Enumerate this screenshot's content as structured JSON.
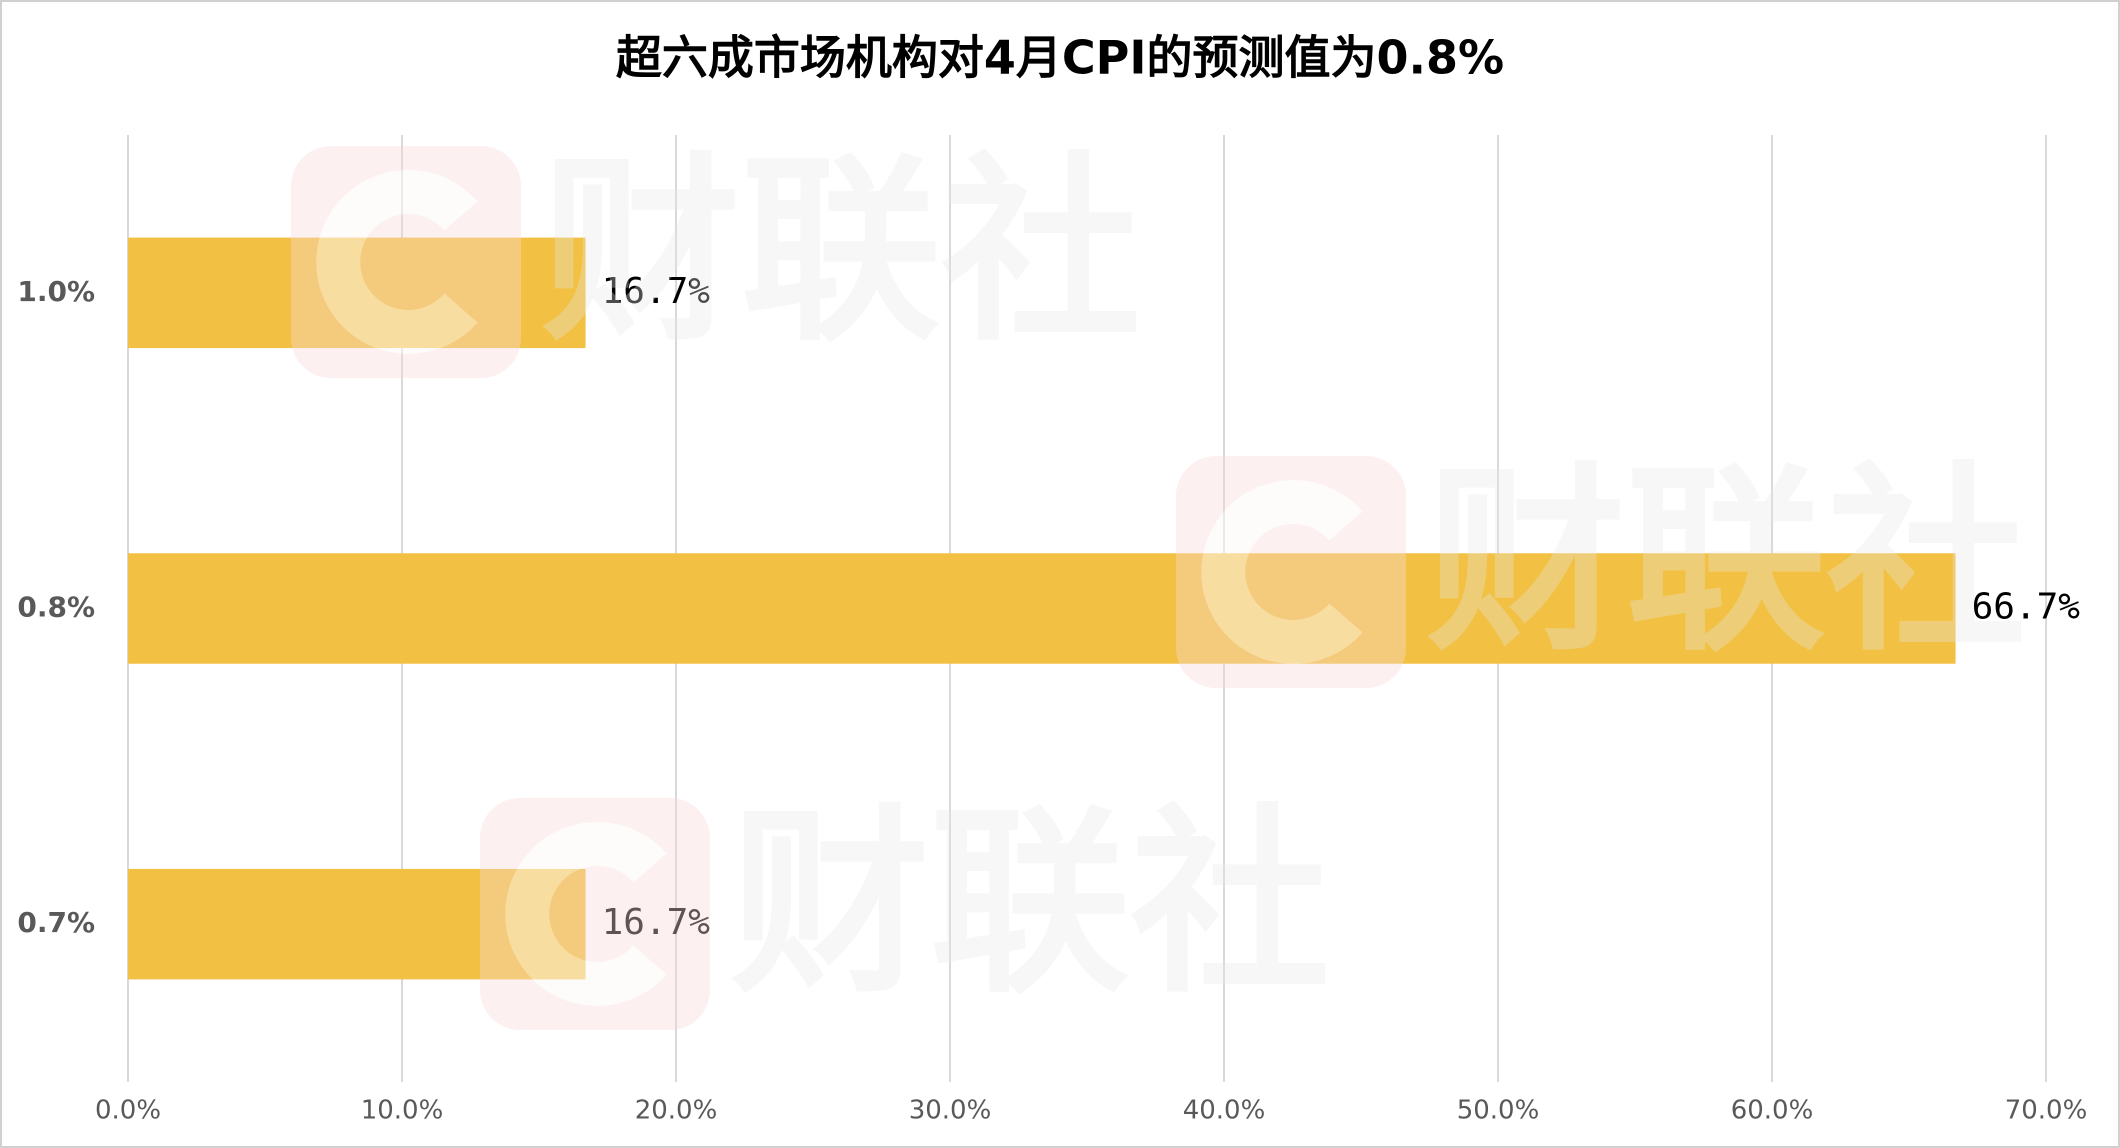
{
  "chart_data": {
    "type": "hbar",
    "title": "超六成市场机构对4月CPI的预测值为0.8%",
    "categories": [
      "1.0%",
      "0.8%",
      "0.7%"
    ],
    "values": [
      16.7,
      66.7,
      16.7
    ],
    "value_labels": [
      "16.7%",
      "66.7%",
      "16.7%"
    ],
    "color": "#f2c143",
    "xlim": [
      0,
      70
    ],
    "xticks": [
      {
        "value": 0,
        "label": "0.0%"
      },
      {
        "value": 10,
        "label": "10.0%"
      },
      {
        "value": 20,
        "label": "20.0%"
      },
      {
        "value": 30,
        "label": "30.0%"
      },
      {
        "value": 40,
        "label": "40.0%"
      },
      {
        "value": 50,
        "label": "50.0%"
      },
      {
        "value": 60,
        "label": "60.0%"
      },
      {
        "value": 70,
        "label": "70.0%"
      }
    ],
    "grid": true,
    "watermark": "财联社"
  }
}
